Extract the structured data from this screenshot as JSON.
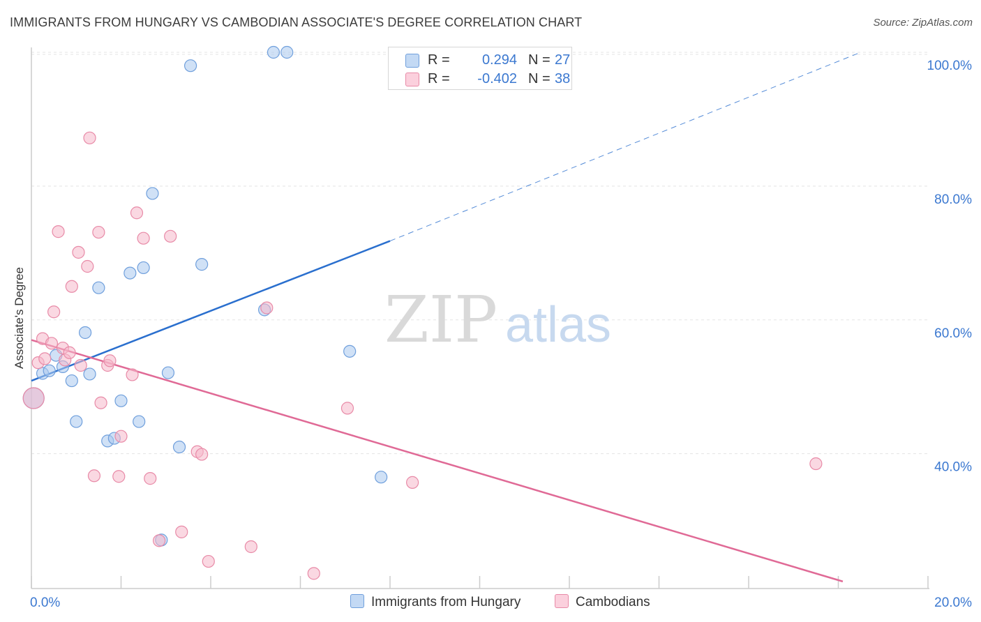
{
  "header": {
    "title": "IMMIGRANTS FROM HUNGARY VS CAMBODIAN ASSOCIATE'S DEGREE CORRELATION CHART",
    "source": "Source: ZipAtlas.com"
  },
  "watermark": {
    "zip": "ZIP",
    "atlas": "atlas"
  },
  "legend_top": {
    "rows": [
      {
        "r_label": "R =",
        "r_value": "0.294",
        "n_label": "N =",
        "n_value": "27"
      },
      {
        "r_label": "R =",
        "r_value": "-0.402",
        "n_label": "N =",
        "n_value": "38"
      }
    ]
  },
  "legend_bottom": {
    "items": [
      {
        "label": "Immigrants from Hungary"
      },
      {
        "label": "Cambodians"
      }
    ]
  },
  "colors": {
    "blue_fill": "#a9c9ef",
    "blue_stroke": "#6f9fdc",
    "blue_line": "#2a6fce",
    "pink_fill": "#f6b8cb",
    "pink_stroke": "#e88aa7",
    "pink_line": "#e06a96",
    "tick_label": "#3b78d0",
    "grid": "#e4e4e4",
    "axis": "#cccccc"
  },
  "chart_data": {
    "type": "scatter",
    "title": "IMMIGRANTS FROM HUNGARY VS CAMBODIAN ASSOCIATE'S DEGREE CORRELATION CHART",
    "xlabel": "",
    "ylabel": "Associate's Degree",
    "xlim": [
      0,
      20
    ],
    "ylim": [
      20,
      102
    ],
    "x_tick_labels": [
      "0.0%",
      "20.0%"
    ],
    "y_ticks": [
      40,
      60,
      80,
      100
    ],
    "y_tick_labels": [
      "40.0%",
      "60.0%",
      "80.0%",
      "100.0%"
    ],
    "grid": true,
    "legend_placement": "top-center and bottom",
    "series": [
      {
        "name": "Immigrants from Hungary",
        "color": "#a9c9ef",
        "R": 0.294,
        "N": 27,
        "points": [
          [
            0.05,
            48.3
          ],
          [
            0.25,
            52.0
          ],
          [
            0.4,
            52.4
          ],
          [
            0.55,
            54.7
          ],
          [
            0.7,
            53.0
          ],
          [
            0.9,
            50.9
          ],
          [
            1.2,
            58.1
          ],
          [
            1.3,
            51.9
          ],
          [
            1.5,
            64.8
          ],
          [
            1.7,
            41.9
          ],
          [
            1.85,
            42.3
          ],
          [
            2.0,
            47.9
          ],
          [
            2.2,
            67.0
          ],
          [
            2.4,
            44.8
          ],
          [
            2.5,
            67.8
          ],
          [
            2.7,
            78.9
          ],
          [
            2.9,
            27.1
          ],
          [
            3.05,
            52.1
          ],
          [
            3.3,
            41.0
          ],
          [
            3.55,
            98.0
          ],
          [
            3.8,
            68.3
          ],
          [
            5.2,
            61.5
          ],
          [
            5.4,
            100.0
          ],
          [
            5.7,
            100.0
          ],
          [
            7.1,
            55.3
          ],
          [
            7.8,
            36.5
          ],
          [
            1.0,
            44.8
          ]
        ],
        "trend": {
          "x1": 0,
          "y1": 50.9,
          "x2": 8.0,
          "y2": 71.8,
          "dash_to_x": 18.5,
          "dash_to_y": 100.0
        }
      },
      {
        "name": "Cambodians",
        "color": "#f6b8cb",
        "R": -0.402,
        "N": 38,
        "points": [
          [
            0.05,
            48.3
          ],
          [
            0.15,
            53.6
          ],
          [
            0.25,
            57.2
          ],
          [
            0.3,
            54.2
          ],
          [
            0.45,
            56.5
          ],
          [
            0.5,
            61.2
          ],
          [
            0.6,
            73.2
          ],
          [
            0.7,
            55.8
          ],
          [
            0.75,
            54.0
          ],
          [
            0.85,
            55.1
          ],
          [
            0.9,
            65.0
          ],
          [
            1.05,
            70.1
          ],
          [
            1.1,
            53.2
          ],
          [
            1.25,
            68.0
          ],
          [
            1.3,
            87.2
          ],
          [
            1.4,
            36.7
          ],
          [
            1.5,
            73.1
          ],
          [
            1.55,
            47.6
          ],
          [
            1.7,
            53.2
          ],
          [
            1.75,
            53.9
          ],
          [
            1.95,
            36.6
          ],
          [
            2.0,
            42.6
          ],
          [
            2.25,
            51.8
          ],
          [
            2.35,
            76.0
          ],
          [
            2.5,
            72.2
          ],
          [
            2.65,
            36.3
          ],
          [
            2.85,
            27.0
          ],
          [
            3.1,
            72.5
          ],
          [
            3.35,
            28.3
          ],
          [
            3.7,
            40.3
          ],
          [
            3.8,
            39.9
          ],
          [
            3.95,
            23.9
          ],
          [
            4.9,
            26.1
          ],
          [
            5.25,
            61.8
          ],
          [
            6.3,
            22.1
          ],
          [
            7.05,
            46.8
          ],
          [
            8.5,
            35.7
          ],
          [
            17.5,
            38.5
          ]
        ],
        "trend": {
          "x1": 0,
          "y1": 57.0,
          "x2": 18.1,
          "y2": 20.9
        }
      }
    ]
  }
}
